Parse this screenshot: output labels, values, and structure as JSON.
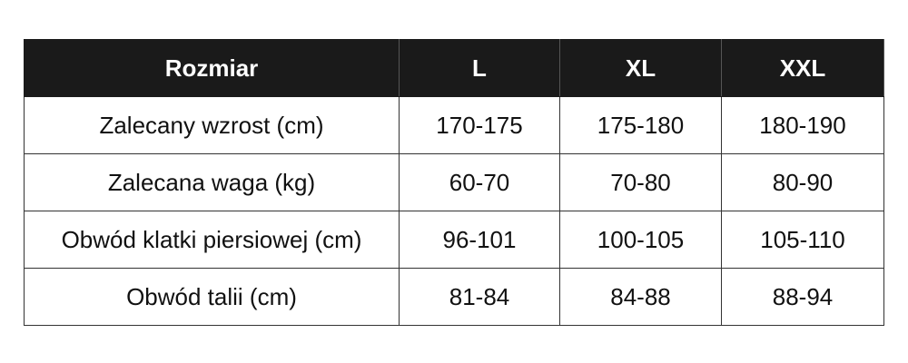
{
  "table": {
    "header": [
      "Rozmiar",
      "L",
      "XL",
      "XXL"
    ],
    "rows": [
      [
        "Zalecany wzrost (cm)",
        "170-175",
        "175-180",
        "180-190"
      ],
      [
        "Zalecana waga (kg)",
        "60-70",
        "70-80",
        "80-90"
      ],
      [
        "Obwód klatki piersiowej (cm)",
        "96-101",
        "100-105",
        "105-110"
      ],
      [
        "Obwód talii (cm)",
        "81-84",
        "84-88",
        "88-94"
      ]
    ]
  }
}
